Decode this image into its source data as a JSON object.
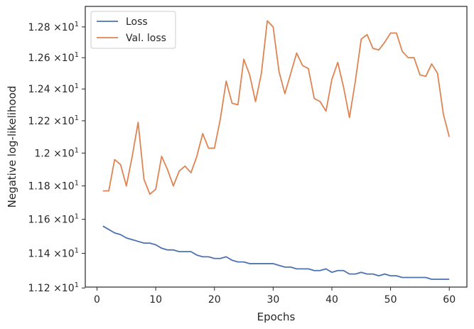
{
  "chart_data": {
    "type": "line",
    "xlabel": "Epochs",
    "ylabel": "Negative log-likelihood",
    "yscale": "log",
    "xlim": [
      -2.0,
      63.0
    ],
    "ylim": [
      11.205,
      12.935
    ],
    "grid": false,
    "legend_position": "top-left",
    "x_ticks": [
      0,
      10,
      20,
      30,
      40,
      50,
      60
    ],
    "x_tick_labels": [
      "0",
      "10",
      "20",
      "30",
      "40",
      "50",
      "60"
    ],
    "y_ticks": [
      11.2,
      11.4,
      11.6,
      11.8,
      12.0,
      12.2,
      12.4,
      12.6,
      12.8
    ],
    "y_tick_base": [
      "1.12",
      "1.14",
      "1.16",
      "1.18",
      "1.2",
      "1.22",
      "1.24",
      "1.26",
      "1.28"
    ],
    "y_tick_times": "×10",
    "y_tick_exp": "1",
    "x": [
      1,
      2,
      3,
      4,
      5,
      6,
      7,
      8,
      9,
      10,
      11,
      12,
      13,
      14,
      15,
      16,
      17,
      18,
      19,
      20,
      21,
      22,
      23,
      24,
      25,
      26,
      27,
      28,
      29,
      30,
      31,
      32,
      33,
      34,
      35,
      36,
      37,
      38,
      39,
      40,
      41,
      42,
      43,
      44,
      45,
      46,
      47,
      48,
      49,
      50,
      51,
      52,
      53,
      54,
      55,
      56,
      57,
      58,
      59,
      60
    ],
    "series": [
      {
        "name": "Loss",
        "color": "#4c72b0",
        "values": [
          11.56,
          11.54,
          11.52,
          11.51,
          11.49,
          11.48,
          11.47,
          11.46,
          11.46,
          11.45,
          11.43,
          11.42,
          11.42,
          11.41,
          11.41,
          11.41,
          11.39,
          11.38,
          11.38,
          11.37,
          11.37,
          11.38,
          11.36,
          11.35,
          11.35,
          11.34,
          11.34,
          11.34,
          11.34,
          11.34,
          11.33,
          11.32,
          11.32,
          11.31,
          11.31,
          11.31,
          11.3,
          11.3,
          11.31,
          11.29,
          11.3,
          11.3,
          11.28,
          11.28,
          11.29,
          11.28,
          11.28,
          11.27,
          11.28,
          11.27,
          11.27,
          11.26,
          11.26,
          11.26,
          11.26,
          11.26,
          11.25,
          11.25,
          11.25,
          11.25
        ]
      },
      {
        "name": "Val. loss",
        "color": "#dd8452",
        "values": [
          11.77,
          11.77,
          11.96,
          11.93,
          11.8,
          11.98,
          12.19,
          11.84,
          11.75,
          11.78,
          11.98,
          11.9,
          11.8,
          11.89,
          11.92,
          11.88,
          11.98,
          12.12,
          12.03,
          12.03,
          12.21,
          12.45,
          12.31,
          12.3,
          12.59,
          12.49,
          12.32,
          12.5,
          12.84,
          12.8,
          12.51,
          12.37,
          12.5,
          12.63,
          12.55,
          12.53,
          12.34,
          12.32,
          12.26,
          12.46,
          12.57,
          12.41,
          12.22,
          12.45,
          12.72,
          12.75,
          12.66,
          12.65,
          12.7,
          12.76,
          12.76,
          12.64,
          12.6,
          12.6,
          12.49,
          12.48,
          12.56,
          12.5,
          12.24,
          12.1
        ]
      }
    ]
  }
}
